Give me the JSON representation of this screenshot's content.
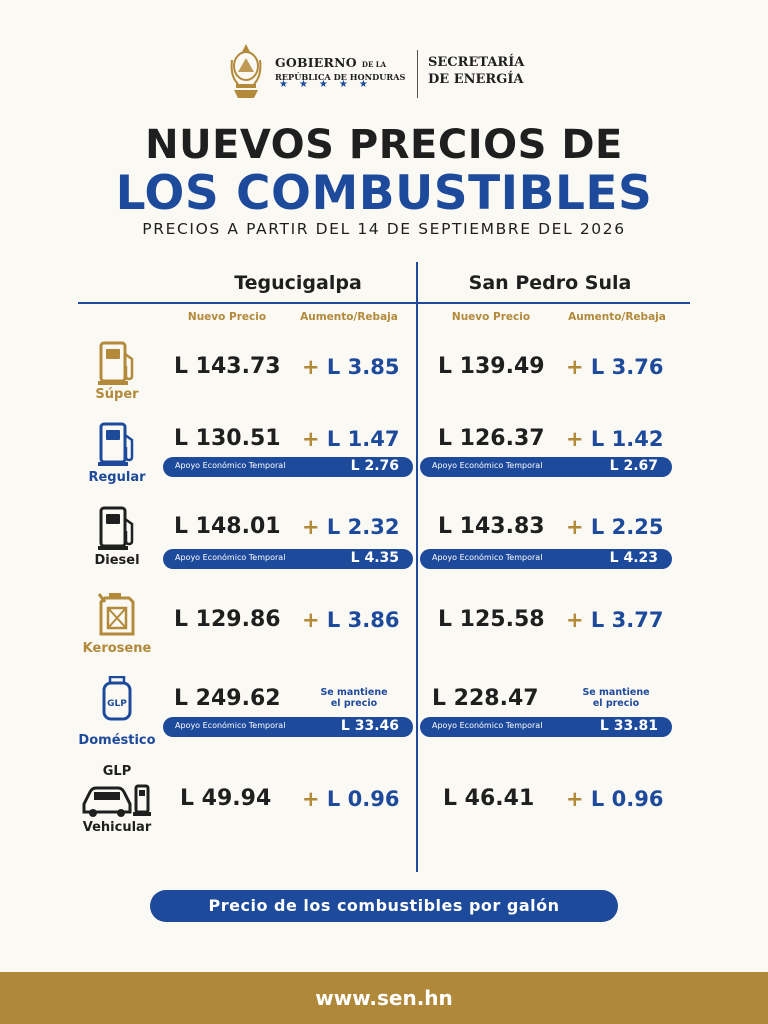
{
  "header": {
    "gov_main": "GOBIERNO",
    "gov_small": "DE LA",
    "gov_sub": "REPÚBLICA DE HONDURAS",
    "stars": "★★★★★",
    "sec_line1": "SECRETARÍA",
    "sec_line2": "DE ENERGÍA"
  },
  "title_line1": "NUEVOS PRECIOS DE",
  "title_line2": "LOS COMBUSTIBLES",
  "subtitle": "PRECIOS A PARTIR DEL 14 DE SEPTIEMBRE DEL 2026",
  "columns": {
    "city1": "Tegucigalpa",
    "city2": "San Pedro Sula",
    "new_price": "Nuevo Precio",
    "change": "Aumento/Rebaja"
  },
  "support_label": "Apoyo Económico Temporal",
  "fuels": [
    {
      "label": "Súper",
      "icon": "fuel-pump-icon",
      "color": "#b3893a",
      "teg_price": "L 143.73",
      "teg_plus": "+",
      "teg_change": "L 3.85",
      "sps_price": "L 139.49",
      "sps_plus": "+",
      "sps_change": "L 3.76"
    },
    {
      "label": "Regular",
      "icon": "fuel-pump-icon",
      "color": "#1e4a9c",
      "teg_price": "L 130.51",
      "teg_plus": "+",
      "teg_change": "L 1.47",
      "sps_price": "L 126.37",
      "sps_plus": "+",
      "sps_change": "L 1.42",
      "teg_support": "L 2.76",
      "sps_support": "L 2.67"
    },
    {
      "label": "Diesel",
      "icon": "fuel-pump-icon",
      "color": "#1f1f1f",
      "teg_price": "L 148.01",
      "teg_plus": "+",
      "teg_change": "L 2.32",
      "sps_price": "L 143.83",
      "sps_plus": "+",
      "sps_change": "L 2.25",
      "teg_support": "L 4.35",
      "sps_support": "L 4.23"
    },
    {
      "label": "Kerosene",
      "icon": "jerrycan-icon",
      "color": "#b3893a",
      "teg_price": "L 129.86",
      "teg_plus": "+",
      "teg_change": "L 3.86",
      "sps_price": "L 125.58",
      "sps_plus": "+",
      "sps_change": "L 3.77"
    },
    {
      "label": "Doméstico",
      "icon": "gas-cylinder-icon",
      "icon_text": "GLP",
      "color": "#1e4a9c",
      "teg_price": "L 249.62",
      "teg_maint": [
        "Se mantiene",
        "el precio"
      ],
      "sps_price": "L 228.47",
      "sps_maint": [
        "Se mantiene",
        "el precio"
      ],
      "teg_support": "L 33.46",
      "sps_support": "L 33.81"
    },
    {
      "label_top": "GLP",
      "label": "Vehicular",
      "icon": "car-pump-icon",
      "color": "#1f1f1f",
      "teg_price": "L 49.94",
      "teg_plus": "+",
      "teg_change": "L 0.96",
      "sps_price": "L 46.41",
      "sps_plus": "+",
      "sps_change": "L 0.96"
    }
  ],
  "footer_pill": "Precio de los combustibles por galón",
  "website": "www.sen.hn"
}
